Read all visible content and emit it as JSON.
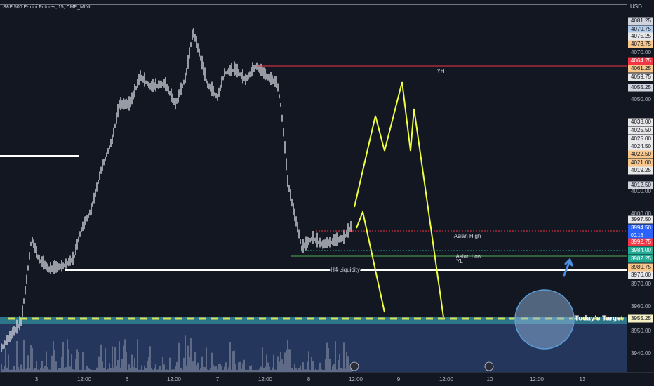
{
  "header": {
    "title": "S&P 500 E-mini Futures, 15, CME_MINI",
    "currency": "USD"
  },
  "price_scale": [
    {
      "label": "4081.25",
      "color": "#d1d4dc"
    },
    {
      "label": "4079.75",
      "color": "#b3cbe8"
    },
    {
      "label": "4075.25",
      "color": "#e8e8e8"
    },
    {
      "label": "4073.75",
      "color": "#f7c68a"
    },
    {
      "label": "4070.00"
    },
    {
      "label": "4064.75",
      "color": "#f23645"
    },
    {
      "label": "4061.25",
      "color": "#f7c68a"
    },
    {
      "label": "4059.75",
      "color": "#e8e8e8"
    },
    {
      "label": "4055.25",
      "color": "#d1d4dc"
    },
    {
      "label": "4050.00"
    },
    {
      "label": "4033.00",
      "color": "#e8e8e8"
    },
    {
      "label": "4025.50",
      "color": "#e8e8e8"
    },
    {
      "label": "4025.00",
      "color": "#e8e8e8"
    },
    {
      "label": "4024.50",
      "color": "#e8e8e8"
    },
    {
      "label": "4022.50",
      "color": "#f7c68a"
    },
    {
      "label": "4021.00",
      "color": "#f7c68a"
    },
    {
      "label": "4019.25",
      "color": "#e8e8e8"
    },
    {
      "label": "4012.50",
      "color": "#d1d4dc"
    },
    {
      "label": "4010.00"
    },
    {
      "label": "4000.00"
    },
    {
      "label": "3997.50",
      "color": "#e8e8e8"
    },
    {
      "label": "3994.50",
      "color": "#2962ff"
    },
    {
      "label": "00:13",
      "color": "#2962ff"
    },
    {
      "label": "3992.75",
      "color": "#f23645"
    },
    {
      "label": "3984.00",
      "color": "#22ab94"
    },
    {
      "label": "3982.25",
      "color": "#22ab94"
    },
    {
      "label": "3980.75",
      "color": "#f7c68a"
    },
    {
      "label": "3976.00",
      "color": "#e8e8e8"
    },
    {
      "label": "3970.00"
    },
    {
      "label": "3960.00"
    },
    {
      "label": "3955.25",
      "color": "#f5f1c4"
    },
    {
      "label": "3950.00"
    },
    {
      "label": "3940.00"
    }
  ],
  "time_scale": [
    "3",
    "12:00",
    "6",
    "12:00",
    "7",
    "12:00",
    "8",
    "12:00",
    "9",
    "12:00",
    "10",
    "12:00",
    "13"
  ],
  "annotations": {
    "yh": "YH",
    "asian_high": "Asian High",
    "asian_low": "Asian Low",
    "yl": "YL",
    "h4": "H4 Liquidity",
    "target": "Today's Target"
  }
}
